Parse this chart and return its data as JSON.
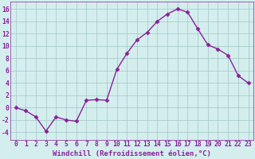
{
  "x": [
    0,
    1,
    2,
    3,
    4,
    5,
    6,
    7,
    8,
    9,
    10,
    11,
    12,
    13,
    14,
    15,
    16,
    17,
    18,
    19,
    20,
    21,
    22,
    23
  ],
  "y": [
    0,
    -0.5,
    -1.5,
    -3.8,
    -1.5,
    -2.0,
    -2.2,
    1.2,
    1.3,
    1.2,
    6.2,
    8.8,
    11.0,
    12.2,
    14.0,
    15.2,
    16.0,
    15.5,
    12.8,
    10.2,
    9.5,
    8.5,
    5.2,
    4.0
  ],
  "line_color": "#882299",
  "marker": "D",
  "markersize": 2.5,
  "linewidth": 1.0,
  "bg_color": "#d4eeee",
  "grid_color": "#aacccc",
  "xlabel": "Windchill (Refroidissement éolien,°C)",
  "xlabel_fontsize": 6.5,
  "tick_fontsize": 5.8,
  "yticks": [
    -4,
    -2,
    0,
    2,
    4,
    6,
    8,
    10,
    12,
    14,
    16
  ],
  "ylim": [
    -5.2,
    17.2
  ],
  "xlim": [
    -0.5,
    23.5
  ]
}
